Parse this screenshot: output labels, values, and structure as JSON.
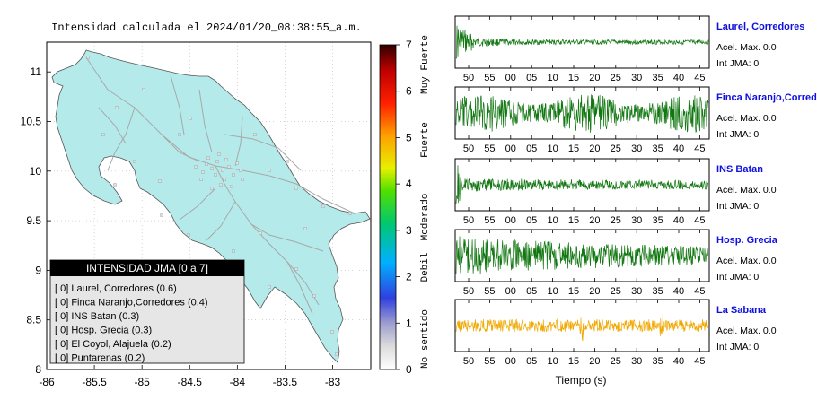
{
  "map": {
    "title": "Intensidad calculada el 2024/01/20_08:38:55_a.m.",
    "x_ticks": [
      "-86",
      "-85.5",
      "-85",
      "-84.5",
      "-84",
      "-83.5",
      "-83"
    ],
    "y_ticks": [
      "11",
      "10.5",
      "10",
      "9.5",
      "9",
      "8.5",
      "8"
    ],
    "land_color": "#b4eaea",
    "legend": {
      "title": "INTENSIDAD JMA [0 a 7]",
      "items": [
        "[ 0]  Laurel, Corredores (0.6)",
        "[ 0]  Finca Naranjo,Corredores (0.4)",
        "[ 0]  INS Batan (0.3)",
        "[ 0]  Hosp. Grecia (0.3)",
        "[ 0]  El Coyol, Alajuela (0.2)",
        "[ 0]  Puntarenas (0.2)"
      ]
    }
  },
  "colorbar": {
    "ticks": [
      "7",
      "6",
      "5",
      "4",
      "3",
      "2",
      "1",
      "0"
    ],
    "labels": [
      "Muy Fuerte",
      "Fuerte",
      "Moderado",
      "Debil",
      "No sentido"
    ]
  },
  "waveforms": {
    "x_tick_labels": [
      "50",
      "55",
      "00",
      "05",
      "10",
      "15",
      "20",
      "25",
      "30",
      "35",
      "40",
      "45"
    ],
    "xlabel": "Tiempo (s)",
    "stations": [
      {
        "name": "Laurel, Corredores",
        "accel": "Acel. Max. 0.0",
        "jma": "Int JMA: 0",
        "color": "#117711"
      },
      {
        "name": "Finca Naranjo,Corredores",
        "accel": "Acel. Max. 0.0",
        "jma": "Int JMA: 0",
        "color": "#117711"
      },
      {
        "name": "INS Batan",
        "accel": "Acel. Max. 0.0",
        "jma": "Int JMA: 0",
        "color": "#117711"
      },
      {
        "name": "Hosp. Grecia",
        "accel": "Acel. Max. 0.0",
        "jma": "Int JMA: 0",
        "color": "#117711"
      },
      {
        "name": "La Sabana",
        "accel": "Acel. Max. 0.0",
        "jma": "Int JMA: 0",
        "color": "#f0a800"
      }
    ]
  },
  "chart_data": [
    {
      "type": "scatter",
      "title": "Intensidad calculada el 2024/01/20_08:38:55_a.m.",
      "xlim": [
        -86,
        -82.6
      ],
      "ylim": [
        8,
        11.3
      ],
      "legend_title": "INTENSIDAD JMA [0 a 7]",
      "legend_placement": "bottom-left",
      "series": [
        {
          "name": "Laurel, Corredores",
          "intensity": 0,
          "value": 0.6
        },
        {
          "name": "Finca Naranjo,Corredores",
          "intensity": 0,
          "value": 0.4
        },
        {
          "name": "INS Batan",
          "intensity": 0,
          "value": 0.3
        },
        {
          "name": "Hosp. Grecia",
          "intensity": 0,
          "value": 0.3
        },
        {
          "name": "El Coyol, Alajuela",
          "intensity": 0,
          "value": 0.2
        },
        {
          "name": "Puntarenas",
          "intensity": 0,
          "value": 0.2
        }
      ],
      "colorbar_range": [
        0,
        7
      ]
    },
    {
      "type": "line",
      "xlabel": "Tiempo (s)",
      "x_ticks": [
        "50",
        "55",
        "00",
        "05",
        "10",
        "15",
        "20",
        "25",
        "30",
        "35",
        "40",
        "45"
      ],
      "series": [
        {
          "name": "Laurel, Corredores",
          "max_accel": 0.0,
          "jma": 0
        },
        {
          "name": "Finca Naranjo,Corredores",
          "max_accel": 0.0,
          "jma": 0
        },
        {
          "name": "INS Batan",
          "max_accel": 0.0,
          "jma": 0
        },
        {
          "name": "Hosp. Grecia",
          "max_accel": 0.0,
          "jma": 0
        },
        {
          "name": "La Sabana",
          "max_accel": 0.0,
          "jma": 0
        }
      ]
    }
  ]
}
